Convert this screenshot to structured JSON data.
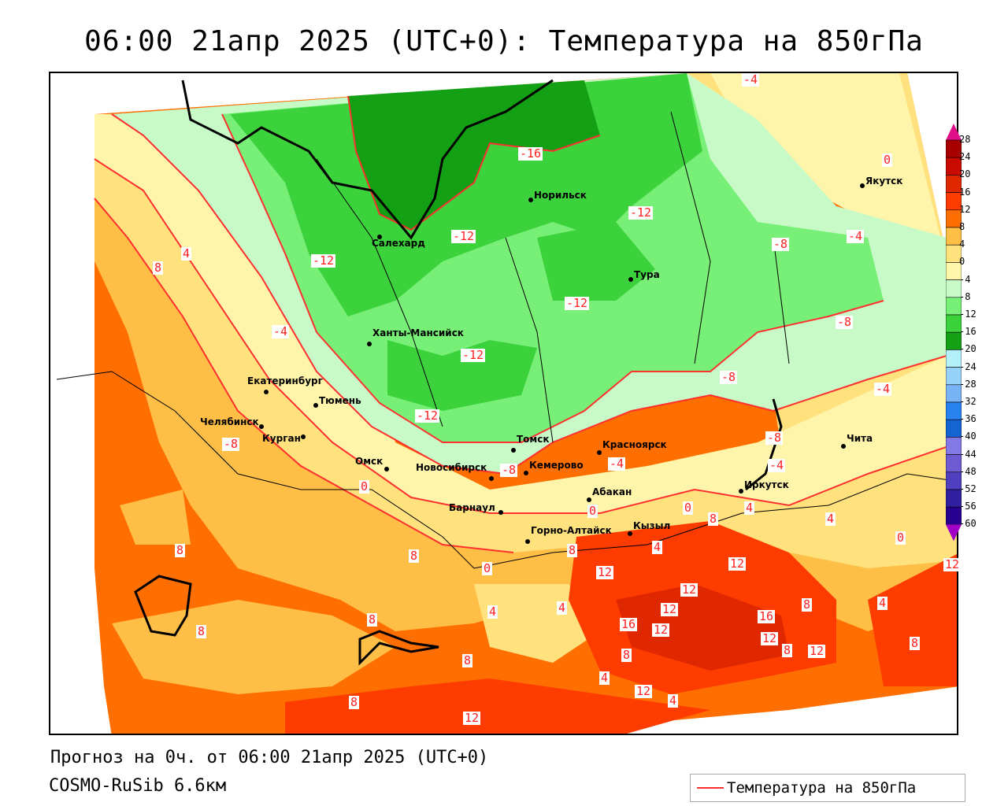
{
  "title": "06:00 21апр 2025 (UTC+0): Температура на 850гПа",
  "footer": {
    "forecast": "Прогноз на 0ч. от 06:00 21апр 2025 (UTC+0)",
    "model": "COSMO-RuSib 6.6км"
  },
  "legend": {
    "label": "Температура на 850гПа",
    "line_color": "#ff3030"
  },
  "colorbar": {
    "ticks": [
      "28",
      "24",
      "20",
      "16",
      "12",
      "8",
      "4",
      "0",
      "-4",
      "-8",
      "-12",
      "-16",
      "-20",
      "-24",
      "-28",
      "-32",
      "-36",
      "-40",
      "-44",
      "-48",
      "-52",
      "-56",
      "-60"
    ],
    "colors": [
      "#a80000",
      "#c80a00",
      "#e02800",
      "#ff3c00",
      "#ff6e00",
      "#ffbe46",
      "#ffe17d",
      "#fff5aa",
      "#c8fac8",
      "#78f078",
      "#3cd23c",
      "#14a014",
      "#b4f0fa",
      "#96d2fa",
      "#78b4f5",
      "#2882f0",
      "#1464d2",
      "#8278e6",
      "#6e5ad2",
      "#5040c0",
      "#3020a0",
      "#280090"
    ],
    "top_arrow": "#e0108a",
    "bottom_arrow": "#a000c8"
  },
  "cities": [
    "Норильск",
    "Салехард",
    "Тура",
    "Ханты-Мансийск",
    "Якутск",
    "Екатеринбург",
    "Тюмень",
    "Челябинск",
    "Курган",
    "Омск",
    "Томск",
    "Новосибирск",
    "Кемерово",
    "Красноярск",
    "Барнаул",
    "Абакан",
    "Иркутск",
    "Чита",
    "Горно-Алтайск",
    "Кызыл"
  ],
  "contour_labels": [
    "-16",
    "-12",
    "-12",
    "-12",
    "-12",
    "-12",
    "-12",
    "-8",
    "-8",
    "-8",
    "-4",
    "-4",
    "-4",
    "-4",
    "4",
    "8",
    "0",
    "-8",
    "-4",
    "8",
    "8",
    "8",
    "8",
    "8",
    "8",
    "12",
    "12",
    "4",
    "4",
    "8",
    "16",
    "12",
    "12",
    "12",
    "16",
    "12",
    "8",
    "12",
    "8",
    "12",
    "12",
    "4",
    "4",
    "0",
    "4",
    "8",
    "12",
    "0",
    "4",
    "8",
    "0",
    "-4",
    "-8",
    "0",
    "4",
    "8",
    "4",
    "0",
    "-8"
  ]
}
